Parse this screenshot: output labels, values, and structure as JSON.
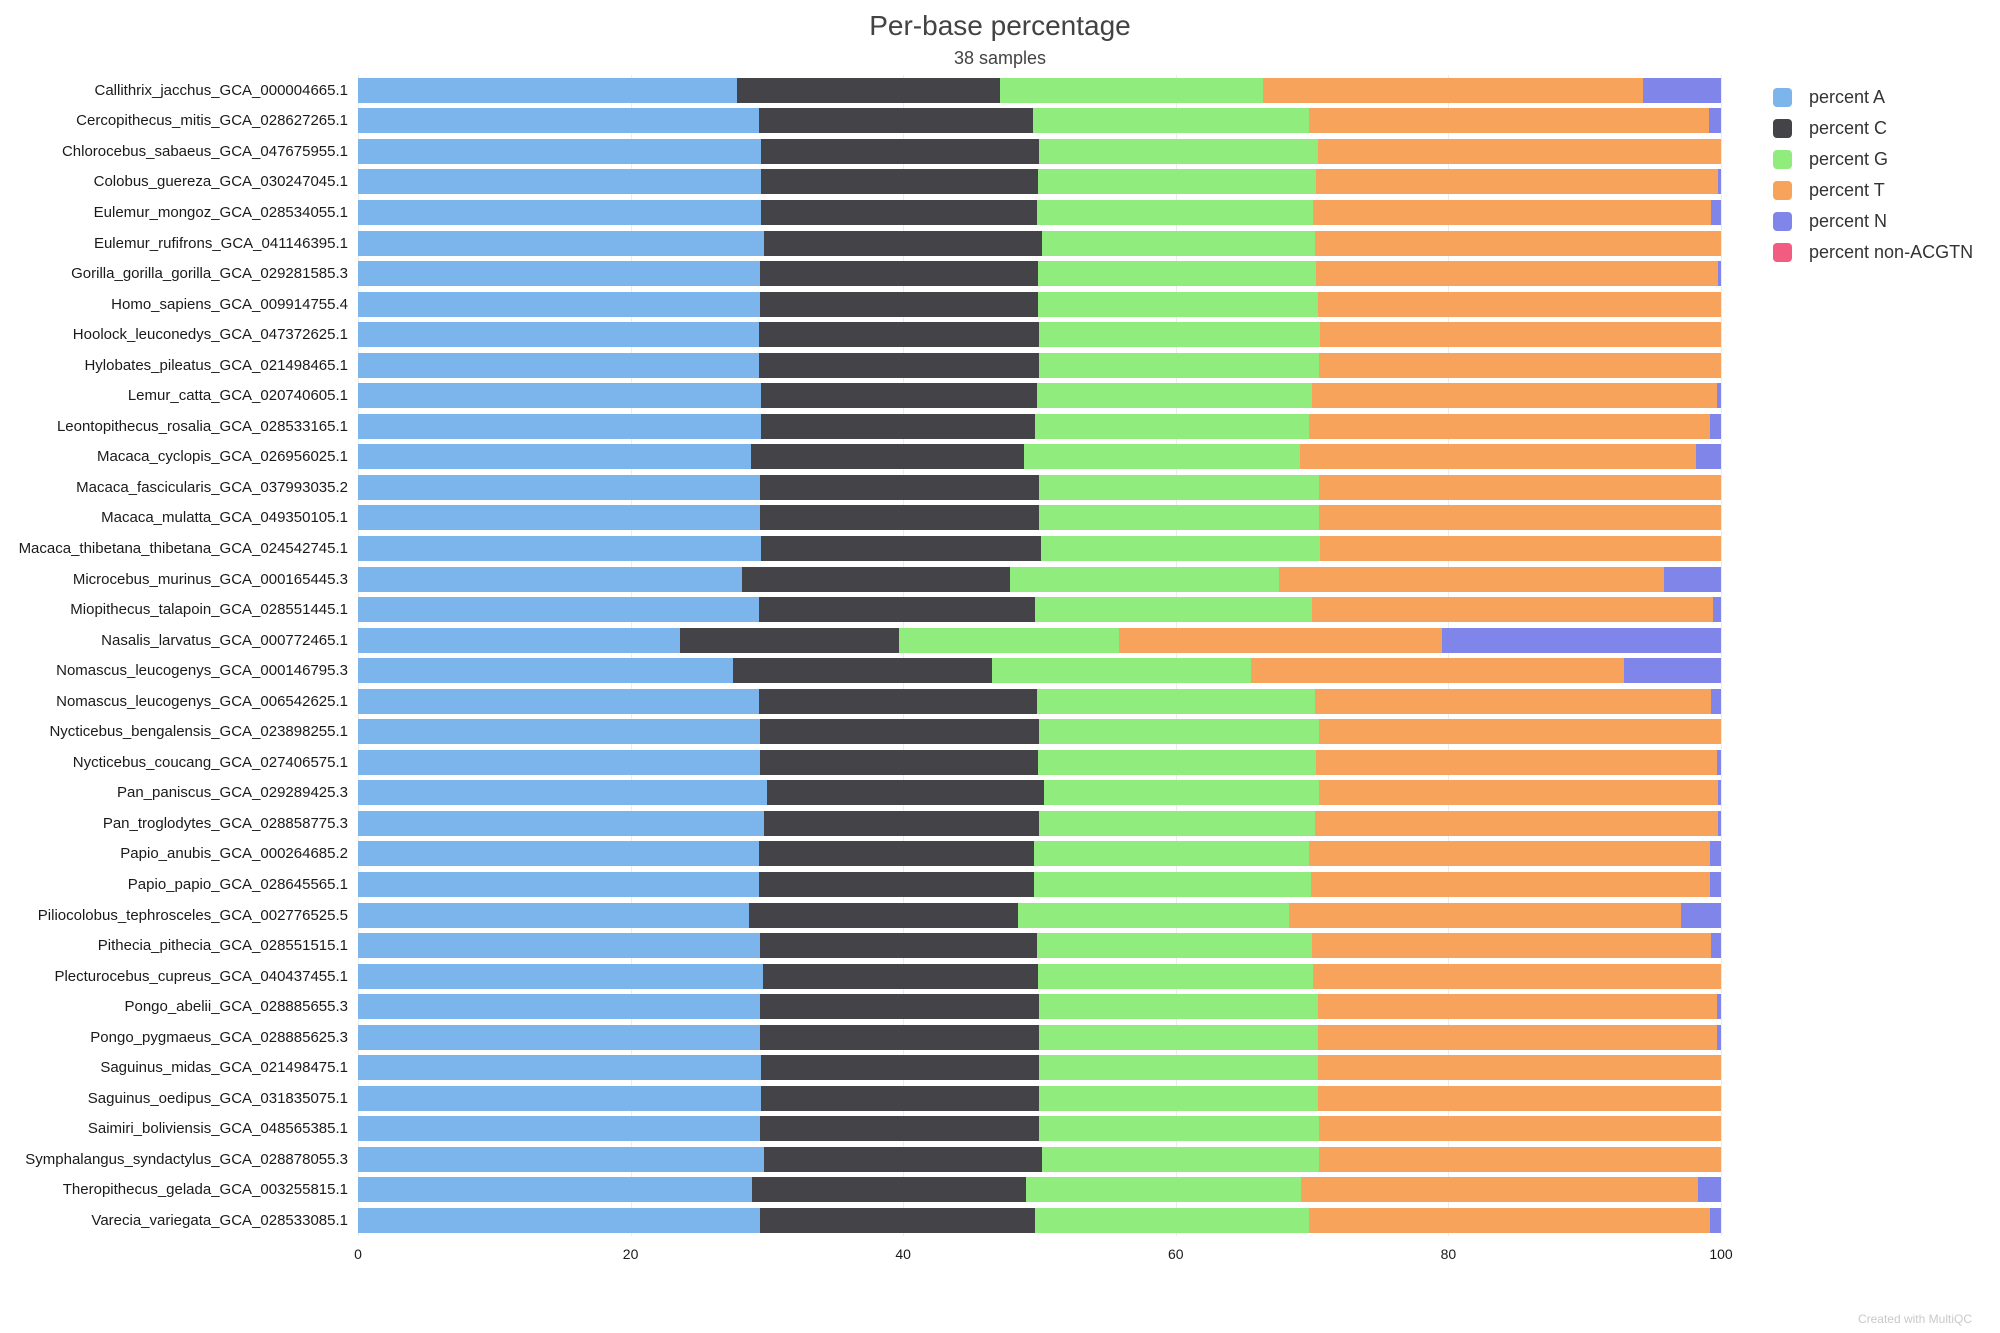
{
  "footer": {
    "text": "Created with MultiQC"
  },
  "chart_data": {
    "type": "bar",
    "orientation": "horizontal",
    "stacked": true,
    "title": "Per-base percentage",
    "subtitle": "38 samples",
    "xlabel": "",
    "ylabel": "",
    "xlim": [
      0,
      100
    ],
    "x_ticks": [
      0,
      20,
      40,
      60,
      80,
      100
    ],
    "grid": true,
    "legend_position": "right",
    "categories": [
      "Callithrix_jacchus_GCA_000004665.1",
      "Cercopithecus_mitis_GCA_028627265.1",
      "Chlorocebus_sabaeus_GCA_047675955.1",
      "Colobus_guereza_GCA_030247045.1",
      "Eulemur_mongoz_GCA_028534055.1",
      "Eulemur_rufifrons_GCA_041146395.1",
      "Gorilla_gorilla_gorilla_GCA_029281585.3",
      "Homo_sapiens_GCA_009914755.4",
      "Hoolock_leuconedys_GCA_047372625.1",
      "Hylobates_pileatus_GCA_021498465.1",
      "Lemur_catta_GCA_020740605.1",
      "Leontopithecus_rosalia_GCA_028533165.1",
      "Macaca_cyclopis_GCA_026956025.1",
      "Macaca_fascicularis_GCA_037993035.2",
      "Macaca_mulatta_GCA_049350105.1",
      "Macaca_thibetana_thibetana_GCA_024542745.1",
      "Microcebus_murinus_GCA_000165445.3",
      "Miopithecus_talapoin_GCA_028551445.1",
      "Nasalis_larvatus_GCA_000772465.1",
      "Nomascus_leucogenys_GCA_000146795.3",
      "Nomascus_leucogenys_GCA_006542625.1",
      "Nycticebus_bengalensis_GCA_023898255.1",
      "Nycticebus_coucang_GCA_027406575.1",
      "Pan_paniscus_GCA_029289425.3",
      "Pan_troglodytes_GCA_028858775.3",
      "Papio_anubis_GCA_000264685.2",
      "Papio_papio_GCA_028645565.1",
      "Piliocolobus_tephrosceles_GCA_002776525.5",
      "Pithecia_pithecia_GCA_028551515.1",
      "Plecturocebus_cupreus_GCA_040437455.1",
      "Pongo_abelii_GCA_028885655.3",
      "Pongo_pygmaeus_GCA_028885625.3",
      "Saguinus_midas_GCA_021498475.1",
      "Saguinus_oedipus_GCA_031835075.1",
      "Saimiri_boliviensis_GCA_048565385.1",
      "Symphalangus_syndactylus_GCA_028878055.3",
      "Theropithecus_gelada_GCA_003255815.1",
      "Varecia_variegata_GCA_028533085.1"
    ],
    "series": [
      {
        "name": "percent A",
        "key": "percent-a",
        "color": "#7cb5ec",
        "values": [
          27.8,
          29.4,
          29.6,
          29.6,
          29.6,
          29.8,
          29.5,
          29.5,
          29.4,
          29.4,
          29.6,
          29.6,
          28.8,
          29.5,
          29.5,
          29.6,
          28.2,
          29.4,
          23.6,
          27.5,
          29.4,
          29.5,
          29.5,
          30.0,
          29.8,
          29.4,
          29.4,
          28.7,
          29.5,
          29.7,
          29.5,
          29.5,
          29.6,
          29.6,
          29.5,
          29.8,
          28.9,
          29.5
        ]
      },
      {
        "name": "percent C",
        "key": "percent-c",
        "color": "#434348",
        "values": [
          19.3,
          20.1,
          20.4,
          20.3,
          20.2,
          20.4,
          20.4,
          20.4,
          20.6,
          20.6,
          20.2,
          20.1,
          20.1,
          20.5,
          20.5,
          20.5,
          19.6,
          20.3,
          16.1,
          19.0,
          20.4,
          20.5,
          20.4,
          20.3,
          20.2,
          20.2,
          20.2,
          19.7,
          20.3,
          20.2,
          20.5,
          20.5,
          20.4,
          20.4,
          20.5,
          20.4,
          20.1,
          20.2
        ]
      },
      {
        "name": "percent G",
        "key": "percent-g",
        "color": "#90ed7d",
        "values": [
          19.3,
          20.3,
          20.4,
          20.4,
          20.3,
          20.0,
          20.4,
          20.5,
          20.6,
          20.5,
          20.2,
          20.1,
          20.2,
          20.5,
          20.5,
          20.5,
          19.8,
          20.3,
          16.1,
          19.0,
          20.4,
          20.5,
          20.4,
          20.2,
          20.2,
          20.2,
          20.3,
          19.9,
          20.2,
          20.2,
          20.4,
          20.4,
          20.4,
          20.4,
          20.5,
          20.3,
          20.2,
          20.1
        ]
      },
      {
        "name": "percent T",
        "key": "percent-t",
        "color": "#f7a35c",
        "values": [
          27.9,
          29.3,
          29.6,
          29.5,
          29.2,
          29.8,
          29.5,
          29.6,
          29.4,
          29.5,
          29.7,
          29.4,
          29.1,
          29.5,
          29.5,
          29.4,
          28.2,
          29.4,
          23.7,
          27.4,
          29.1,
          29.5,
          29.4,
          29.3,
          29.6,
          29.4,
          29.3,
          28.8,
          29.3,
          29.9,
          29.3,
          29.3,
          29.6,
          29.6,
          29.5,
          29.5,
          29.1,
          29.4
        ]
      },
      {
        "name": "percent N",
        "key": "percent-n",
        "color": "#8085e9",
        "values": [
          5.7,
          0.9,
          0.0,
          0.2,
          0.7,
          0.0,
          0.2,
          0.0,
          0.0,
          0.0,
          0.3,
          0.8,
          1.8,
          0.0,
          0.0,
          0.0,
          4.2,
          0.6,
          20.5,
          7.1,
          0.7,
          0.0,
          0.3,
          0.2,
          0.2,
          0.8,
          0.8,
          2.9,
          0.7,
          0.0,
          0.3,
          0.3,
          0.0,
          0.0,
          0.0,
          0.0,
          1.7,
          0.8
        ]
      },
      {
        "name": "percent non-ACGTN",
        "key": "percent-non-acgtn",
        "color": "#f15c80",
        "values": [
          0,
          0,
          0,
          0,
          0,
          0,
          0,
          0,
          0,
          0,
          0,
          0,
          0,
          0,
          0,
          0,
          0,
          0,
          0,
          0,
          0,
          0,
          0,
          0,
          0,
          0,
          0,
          0,
          0,
          0,
          0,
          0,
          0,
          0,
          0,
          0,
          0,
          0
        ]
      }
    ]
  }
}
